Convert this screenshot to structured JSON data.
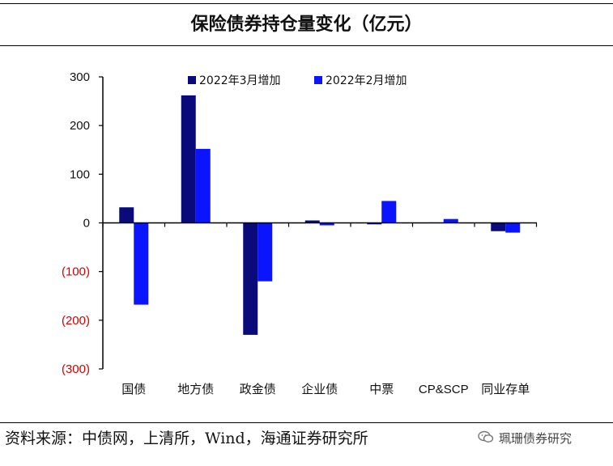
{
  "title": "保险债券持仓量变化（亿元）",
  "source": "资料来源：中债网，上清所，Wind，海通证券研究所",
  "watermark": "珮珊债券研究",
  "colors": {
    "series1": "#0a0a7a",
    "series2": "#0a14ff",
    "negative_tick": "#d40000",
    "axis": "#000000"
  },
  "chart_data": {
    "type": "bar",
    "title": "保险债券持仓量变化（亿元）",
    "categories": [
      "国债",
      "地方债",
      "政金债",
      "企业债",
      "中票",
      "CP&SCP",
      "同业存单"
    ],
    "series": [
      {
        "name": "2022年3月增加",
        "values": [
          32,
          262,
          -230,
          5,
          -3,
          1,
          -17
        ]
      },
      {
        "name": "2022年2月增加",
        "values": [
          -168,
          152,
          -120,
          -5,
          45,
          8,
          -20
        ]
      }
    ],
    "ylim": [
      -300,
      300
    ],
    "yticks": [
      {
        "value": 300,
        "label": "300"
      },
      {
        "value": 200,
        "label": "200"
      },
      {
        "value": 100,
        "label": "100"
      },
      {
        "value": 0,
        "label": "0"
      },
      {
        "value": -100,
        "label": "(100)"
      },
      {
        "value": -200,
        "label": "(200)"
      },
      {
        "value": -300,
        "label": "(300)"
      }
    ],
    "legend_position": "top",
    "xlabel": "",
    "ylabel": ""
  }
}
